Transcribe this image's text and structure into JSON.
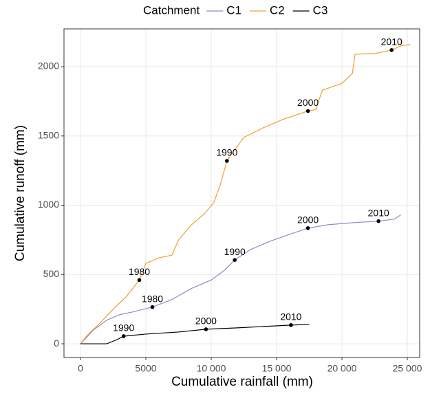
{
  "chart_data": {
    "type": "line",
    "x_label": "Cumulative rainfall (mm)",
    "y_label": "Cumulative runoff (mm)",
    "legend_title": "Catchment",
    "legend_position": "top",
    "grid": true,
    "xlim": [
      -1263,
      25947
    ],
    "ylim": [
      -99,
      2273
    ],
    "xticks": [
      0,
      5000,
      {
        "value": 10000,
        "label": "10 000"
      },
      {
        "value": 15000,
        "label": "15 000"
      },
      {
        "value": 20000,
        "label": "20 000"
      },
      {
        "value": 25000,
        "label": "25 000"
      }
    ],
    "yticks": [
      0,
      500,
      1000,
      1500,
      2000
    ],
    "series": [
      {
        "name": "C1",
        "color": "#8c8cc8",
        "x": [
          0,
          500,
          1000,
          2000,
          3000,
          4000,
          5500,
          7000,
          8500,
          10000,
          11000,
          11800,
          13000,
          14500,
          16000,
          17400,
          19000,
          21000,
          22800,
          24000,
          24500
        ],
        "values": [
          0,
          50,
          100,
          170,
          210,
          230,
          265,
          320,
          400,
          460,
          530,
          605,
          680,
          740,
          790,
          835,
          860,
          875,
          885,
          900,
          930
        ]
      },
      {
        "name": "C2",
        "color": "#f0a030",
        "x": [
          0,
          500,
          1500,
          2500,
          3500,
          4500,
          5000,
          6000,
          7000,
          7500,
          8500,
          9500,
          10200,
          10700,
          11200,
          11800,
          12500,
          14000,
          15500,
          17400,
          18000,
          18500,
          20000,
          20800,
          21000,
          22500,
          23800,
          24500,
          25200
        ],
        "values": [
          0,
          60,
          150,
          250,
          340,
          460,
          580,
          620,
          640,
          750,
          860,
          940,
          1020,
          1150,
          1320,
          1400,
          1490,
          1560,
          1620,
          1680,
          1690,
          1830,
          1880,
          1950,
          2090,
          2095,
          2120,
          2150,
          2160
        ]
      },
      {
        "name": "C3",
        "color": "#000000",
        "x": [
          0,
          2000,
          2800,
          3300,
          5000,
          7500,
          9600,
          12000,
          16100,
          17500
        ],
        "values": [
          0,
          0,
          30,
          55,
          70,
          85,
          105,
          115,
          135,
          140
        ]
      }
    ],
    "markers": [
      {
        "label": "1980",
        "x": 5500,
        "y": 265
      },
      {
        "label": "1990",
        "x": 11800,
        "y": 605
      },
      {
        "label": "2000",
        "x": 17400,
        "y": 835
      },
      {
        "label": "2010",
        "x": 22800,
        "y": 885
      },
      {
        "label": "1980",
        "x": 4500,
        "y": 460
      },
      {
        "label": "1990",
        "x": 11200,
        "y": 1320
      },
      {
        "label": "2000",
        "x": 17400,
        "y": 1680
      },
      {
        "label": "2010",
        "x": 23800,
        "y": 2120
      },
      {
        "label": "1990",
        "x": 3300,
        "y": 55
      },
      {
        "label": "2000",
        "x": 9600,
        "y": 105
      },
      {
        "label": "2010",
        "x": 16100,
        "y": 135
      }
    ]
  }
}
